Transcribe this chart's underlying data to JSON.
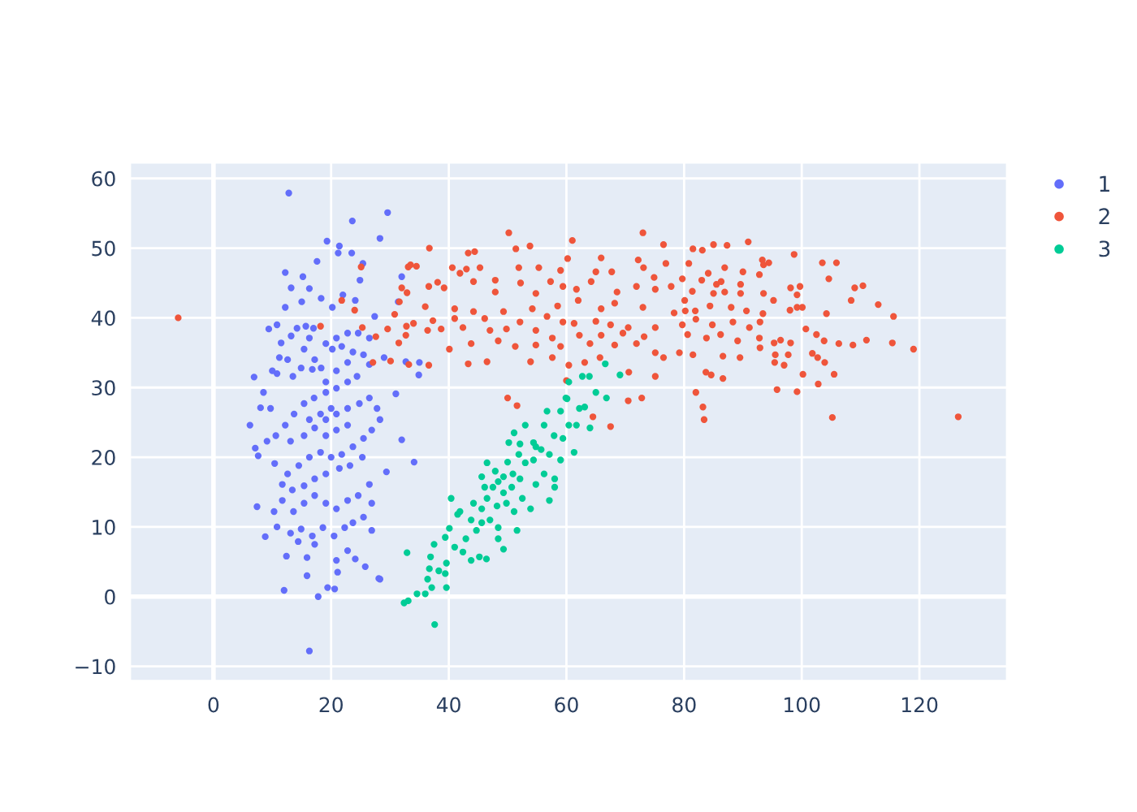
{
  "chart_data": {
    "type": "scatter",
    "xlim": [
      -14.2,
      134.9
    ],
    "ylim": [
      -12.1,
      62.3
    ],
    "xticks": [
      0,
      20,
      40,
      60,
      80,
      100,
      120
    ],
    "yticks": [
      {
        "value": -10,
        "label": "−10"
      },
      0,
      10,
      20,
      30,
      40,
      50,
      60
    ],
    "grid": true,
    "legend": "top right",
    "marker": "circle",
    "series": [
      {
        "name": "1",
        "color": "#636efa",
        "x": [
          12.8,
          23.6,
          29.6,
          28.3,
          19.3,
          21.4,
          21.2,
          23.5,
          25.4,
          17.6,
          12.2,
          15.2,
          24.9,
          32.0,
          13.2,
          16.3,
          18.3,
          24.1,
          22.0,
          12.2,
          15.0,
          20.2,
          9.4,
          10.8,
          27.4,
          31.4,
          6.9,
          6.2,
          7.1,
          7.6,
          7.4,
          8.8,
          10.4,
          12.4,
          12.0,
          15.9,
          17.8,
          16.3,
          19.4,
          20.6,
          20.9,
          21.1,
          25.8,
          28.3,
          24.1,
          22.8,
          26.9,
          29.4,
          34.1,
          32.0,
          31.0,
          34.9,
          35.0,
          29.0,
          32.7,
          28.1,
          8.0,
          9.7,
          10.8,
          11.5,
          13.2,
          14.2,
          15.7,
          17.0,
          13.5,
          14.9,
          16.8,
          18.3,
          20.2,
          21.8,
          23.7,
          25.5,
          26.5,
          24.4,
          22.8,
          20.9,
          19.1,
          17.1,
          15.4,
          13.7,
          12.2,
          10.6,
          9.1,
          13.1,
          15.4,
          17.2,
          19.1,
          20.9,
          22.8,
          24.8,
          26.5,
          27.8,
          28.3,
          26.9,
          25.5,
          23.7,
          21.8,
          20.0,
          18.2,
          16.3,
          14.5,
          12.6,
          11.7,
          13.4,
          15.4,
          17.2,
          19.1,
          21.4,
          23.2,
          25.3,
          26.5,
          24.6,
          22.8,
          20.9,
          19.1,
          17.2,
          15.4,
          13.6,
          11.7,
          10.3,
          10.8,
          13.1,
          14.9,
          16.8,
          18.6,
          20.5,
          22.3,
          23.7,
          25.5,
          26.9,
          17.2,
          15.9,
          14.4,
          19.1,
          20.9,
          22.8,
          20.0,
          18.2,
          16.3,
          19.1,
          20.9,
          22.8,
          17.2,
          15.4,
          12.6,
          11.2,
          10.0,
          8.5,
          19.1,
          20.9,
          22.8,
          24.6,
          26.5,
          16.3
        ],
        "values": [
          57.9,
          53.9,
          55.1,
          51.4,
          51.0,
          50.3,
          49.3,
          49.3,
          47.8,
          48.1,
          46.5,
          45.9,
          45.4,
          45.9,
          44.3,
          44.2,
          42.8,
          42.5,
          43.3,
          41.5,
          42.3,
          41.5,
          38.4,
          39.0,
          40.2,
          42.3,
          31.5,
          24.6,
          21.3,
          20.2,
          12.9,
          8.6,
          19.1,
          5.8,
          0.9,
          3.0,
          0.0,
          -7.8,
          1.3,
          1.1,
          5.2,
          3.5,
          4.3,
          2.5,
          5.4,
          6.6,
          9.5,
          17.9,
          19.3,
          22.5,
          29.1,
          31.8,
          33.6,
          34.3,
          33.7,
          2.6,
          27.1,
          27.0,
          32.0,
          36.4,
          37.4,
          38.5,
          38.8,
          38.5,
          31.6,
          32.8,
          32.6,
          32.8,
          35.5,
          35.9,
          35.1,
          34.7,
          33.3,
          31.6,
          30.8,
          29.9,
          29.3,
          28.5,
          27.7,
          26.2,
          24.6,
          23.1,
          22.3,
          22.3,
          23.1,
          24.2,
          25.4,
          26.2,
          27.0,
          27.7,
          28.5,
          27.0,
          25.4,
          23.9,
          22.7,
          21.5,
          20.4,
          20.0,
          20.7,
          20.0,
          18.8,
          17.6,
          16.1,
          15.3,
          15.9,
          16.9,
          17.6,
          18.4,
          18.8,
          20.0,
          16.1,
          14.5,
          13.8,
          12.6,
          13.4,
          14.5,
          13.4,
          12.2,
          13.8,
          12.2,
          10.0,
          9.1,
          9.7,
          8.7,
          9.9,
          8.7,
          9.9,
          10.6,
          11.4,
          13.4,
          7.5,
          5.6,
          7.9,
          23.1,
          23.9,
          24.6,
          27.0,
          26.2,
          25.4,
          30.8,
          32.4,
          33.6,
          34.0,
          35.5,
          34.0,
          34.3,
          32.4,
          29.3,
          36.3,
          37.1,
          37.8,
          37.8,
          37.1,
          37.1
        ]
      },
      {
        "name": "2",
        "color": "#ef553b",
        "x": [
          -6.0,
          25.1,
          21.8,
          24.0,
          18.2,
          25.3,
          27.6,
          27.1,
          30.1,
          29.6,
          30.8,
          31.5,
          32.7,
          32.8,
          34.0,
          31.6,
          32.0,
          32.9,
          33.1,
          33.5,
          34.5,
          33.2,
          50.2,
          61.0,
          73.0,
          76.5,
          36.7,
          43.3,
          44.4,
          51.4,
          53.8,
          40.6,
          43.0,
          41.9,
          45.3,
          47.9,
          51.9,
          55.3,
          59.0,
          60.2,
          65.9,
          65.0,
          67.7,
          72.2,
          73.1,
          74.9,
          76.9,
          79.7,
          38.1,
          36.6,
          39.2,
          44.2,
          47.9,
          52.2,
          54.8,
          57.3,
          59.4,
          61.7,
          64.2,
          68.6,
          71.9,
          75.1,
          77.8,
          80.1,
          36.0,
          41.0,
          44.2,
          49.3,
          54.2,
          58.5,
          62.0,
          65.9,
          68.2,
          73.0,
          78.3,
          37.3,
          41.0,
          46.1,
          52.1,
          56.7,
          59.4,
          61.3,
          65.0,
          67.5,
          70.5,
          75.1,
          79.7,
          36.4,
          38.7,
          42.4,
          47.0,
          49.8,
          54.8,
          57.6,
          62.2,
          65.9,
          69.6,
          73.2,
          40.1,
          43.8,
          48.4,
          51.3,
          54.8,
          59.0,
          64.0,
          68.2,
          71.9,
          75.1,
          79.2,
          36.6,
          43.3,
          46.5,
          53.9,
          57.6,
          60.4,
          63.1,
          65.7,
          70.6,
          76.5,
          60.0,
          50.0,
          51.6,
          64.5,
          70.5,
          67.5,
          72.8,
          75.1,
          81.5,
          83.1,
          85.0,
          87.3,
          90.9,
          80.8,
          98.7,
          103.5,
          105.9,
          104.6,
          84.1,
          86.9,
          90.0,
          93.3,
          94.4,
          93.5,
          92.8,
          83.0,
          85.5,
          86.3,
          89.6,
          109.0,
          110.4,
          98.1,
          99.7,
          99.2,
          81.4,
          85.0,
          86.9,
          89.6,
          93.5,
          95.2,
          98.0,
          99.2,
          100.1,
          104.2,
          108.4,
          113.0,
          115.6,
          80.2,
          81.9,
          84.4,
          88.0,
          90.6,
          93.4,
          82.0,
          84.8,
          88.3,
          91.1,
          92.9,
          80.6,
          83.8,
          86.2,
          89.1,
          92.8,
          100.7,
          102.5,
          103.8,
          106.3,
          108.7,
          111.0,
          115.4,
          119.0,
          96.4,
          98.1,
          95.3,
          81.5,
          86.6,
          89.5,
          92.9,
          95.5,
          97.7,
          101.8,
          102.7,
          103.9,
          95.4,
          97.0,
          83.7,
          84.6,
          86.6,
          100.2,
          105.5,
          102.8,
          95.8,
          99.2,
          82.0,
          83.2,
          83.4,
          105.2,
          126.6
        ],
        "values": [
          40.0,
          47.3,
          42.5,
          41.1,
          38.8,
          38.6,
          37.3,
          33.6,
          33.8,
          38.4,
          40.5,
          36.4,
          37.5,
          38.8,
          39.2,
          42.3,
          44.3,
          43.6,
          47.3,
          47.6,
          47.4,
          33.3,
          52.2,
          51.1,
          52.2,
          50.5,
          50.0,
          49.3,
          49.5,
          49.9,
          50.3,
          47.2,
          47.0,
          46.4,
          47.2,
          45.4,
          47.2,
          47.2,
          46.8,
          48.5,
          48.6,
          46.6,
          46.6,
          48.3,
          47.2,
          45.8,
          47.8,
          45.6,
          45.1,
          44.5,
          44.3,
          45.2,
          43.7,
          45.0,
          43.5,
          45.2,
          44.5,
          44.1,
          45.2,
          43.7,
          44.5,
          44.1,
          44.5,
          42.5,
          41.6,
          41.3,
          40.9,
          40.9,
          41.3,
          41.7,
          42.5,
          41.3,
          42.1,
          41.5,
          40.7,
          39.6,
          39.9,
          39.9,
          39.4,
          40.2,
          39.4,
          39.2,
          39.5,
          39.0,
          38.6,
          38.6,
          39.0,
          38.2,
          38.4,
          38.6,
          38.2,
          38.4,
          38.2,
          37.1,
          37.5,
          37.5,
          37.8,
          37.3,
          35.5,
          36.3,
          36.7,
          35.9,
          36.1,
          35.9,
          36.3,
          36.1,
          36.3,
          35.0,
          35.0,
          33.2,
          33.4,
          33.7,
          33.7,
          34.3,
          33.2,
          33.6,
          34.3,
          32.2,
          34.3,
          31.0,
          28.5,
          27.4,
          25.8,
          28.1,
          24.4,
          28.5,
          31.6,
          49.9,
          49.7,
          50.5,
          50.4,
          50.9,
          47.8,
          49.1,
          47.9,
          47.9,
          45.6,
          46.4,
          47.2,
          46.6,
          48.3,
          47.9,
          47.6,
          46.2,
          45.4,
          44.8,
          45.2,
          44.8,
          44.3,
          44.6,
          44.3,
          44.5,
          43.3,
          43.8,
          43.5,
          43.7,
          43.5,
          43.5,
          42.5,
          41.1,
          41.5,
          41.5,
          40.6,
          42.5,
          41.9,
          40.2,
          41.0,
          41.0,
          41.7,
          41.5,
          41.0,
          40.6,
          39.8,
          39.0,
          39.4,
          38.6,
          39.4,
          37.6,
          37.1,
          37.6,
          36.7,
          37.1,
          38.4,
          37.6,
          36.7,
          36.3,
          36.1,
          36.8,
          36.4,
          35.5,
          36.8,
          36.4,
          36.4,
          34.7,
          34.5,
          34.3,
          35.7,
          34.7,
          34.7,
          34.9,
          34.3,
          33.6,
          33.6,
          33.2,
          32.2,
          31.8,
          31.3,
          31.9,
          31.9,
          30.5,
          29.7,
          29.4,
          29.3,
          27.2,
          25.4,
          25.7,
          25.8
        ]
      },
      {
        "name": "3",
        "color": "#00cc96",
        "x": [
          37.6,
          32.4,
          33.1,
          34.6,
          36.0,
          32.9,
          36.4,
          37.1,
          39.6,
          36.7,
          36.9,
          38.3,
          39.4,
          39.6,
          37.5,
          39.4,
          40.1,
          40.4,
          41.5,
          41.0,
          42.4,
          43.8,
          45.2,
          46.4,
          49.3,
          48.4,
          42.9,
          44.7,
          43.8,
          45.6,
          47.0,
          48.4,
          51.6,
          41.9,
          44.2,
          45.6,
          46.5,
          48.2,
          49.8,
          51.1,
          53.9,
          46.1,
          47.5,
          49.3,
          50.7,
          52.5,
          57.1,
          45.6,
          46.5,
          47.9,
          49.3,
          50.9,
          52.1,
          54.8,
          58.0,
          50.2,
          51.9,
          53.0,
          54.4,
          56.2,
          58.0,
          53.0,
          54.4,
          55.7,
          57.1,
          59.0,
          56.2,
          57.9,
          59.4,
          61.3,
          56.7,
          59.0,
          60.4,
          61.7,
          59.9,
          62.2,
          63.1,
          64.0,
          62.7,
          63.9,
          65.0,
          66.6,
          69.1,
          66.8,
          60.4,
          50.0,
          48.4,
          52.1,
          54.8,
          51.1,
          60.1
        ],
        "values": [
          -4.0,
          -0.9,
          -0.6,
          0.4,
          0.4,
          6.3,
          2.5,
          1.3,
          1.3,
          4.0,
          5.7,
          3.7,
          3.3,
          4.8,
          7.5,
          8.5,
          9.8,
          14.1,
          11.8,
          7.1,
          6.4,
          5.2,
          5.7,
          5.4,
          6.8,
          8.3,
          8.3,
          9.5,
          11.0,
          10.6,
          11.0,
          9.9,
          9.5,
          12.2,
          13.4,
          12.6,
          14.1,
          13.0,
          13.4,
          12.2,
          12.6,
          15.7,
          15.7,
          14.9,
          15.7,
          14.1,
          13.8,
          17.2,
          19.2,
          18.0,
          17.2,
          17.6,
          16.9,
          16.1,
          15.7,
          22.1,
          20.4,
          19.2,
          19.6,
          17.6,
          16.9,
          24.6,
          22.1,
          21.1,
          20.4,
          19.6,
          24.6,
          23.1,
          22.7,
          20.7,
          26.6,
          26.6,
          24.6,
          24.6,
          28.5,
          27.0,
          27.2,
          24.2,
          31.6,
          31.6,
          29.3,
          33.4,
          31.8,
          28.5,
          30.8,
          19.3,
          16.5,
          21.9,
          21.5,
          23.5,
          28.4
        ]
      }
    ]
  }
}
